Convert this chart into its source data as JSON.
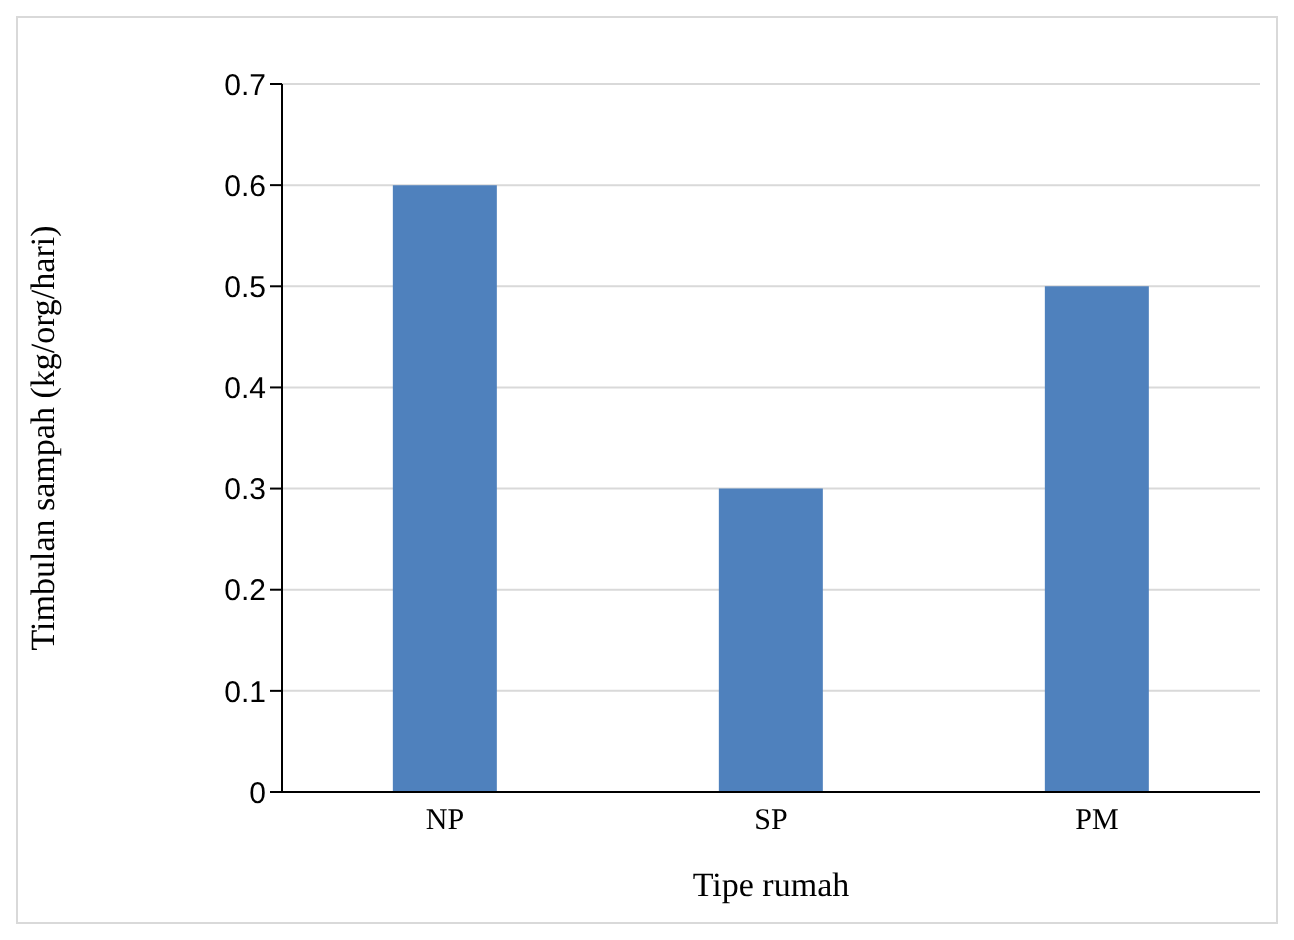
{
  "chart_data": {
    "type": "bar",
    "xlabel": "Tipe rumah",
    "ylabel": "Timbulan sampah (kg/org/hari)",
    "categories": [
      "NP",
      "SP",
      "PM"
    ],
    "values": [
      0.6,
      0.3,
      0.5
    ],
    "color": "#4f81bd",
    "ylim": [
      0,
      0.7
    ],
    "yticks": [
      0,
      0.1,
      0.2,
      0.3,
      0.4,
      0.5,
      0.6,
      0.7
    ],
    "grid": "y"
  }
}
